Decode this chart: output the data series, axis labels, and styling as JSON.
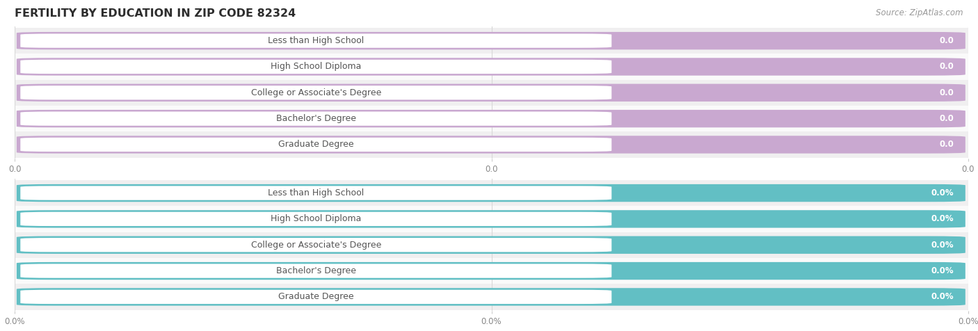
{
  "title": "FERTILITY BY EDUCATION IN ZIP CODE 82324",
  "source": "Source: ZipAtlas.com",
  "categories": [
    "Less than High School",
    "High School Diploma",
    "College or Associate's Degree",
    "Bachelor's Degree",
    "Graduate Degree"
  ],
  "values_top": [
    0.0,
    0.0,
    0.0,
    0.0,
    0.0
  ],
  "values_bottom": [
    0.0,
    0.0,
    0.0,
    0.0,
    0.0
  ],
  "bar_color_top": "#c9a8d0",
  "bar_color_bottom": "#62bfc4",
  "row_bg_alt": "#f0eff0",
  "row_bg_main": "#fafafa",
  "title_color": "#2d2d2d",
  "source_color": "#999999",
  "label_text_color": "#555555",
  "value_text_color_top": "#b8a0c0",
  "value_text_color_bottom": "#60b8bc",
  "tick_color": "#888888",
  "gridline_color": "#d8d8d8",
  "title_fontsize": 11.5,
  "label_fontsize": 9.0,
  "value_fontsize": 8.5,
  "tick_fontsize": 8.5,
  "source_fontsize": 8.5
}
